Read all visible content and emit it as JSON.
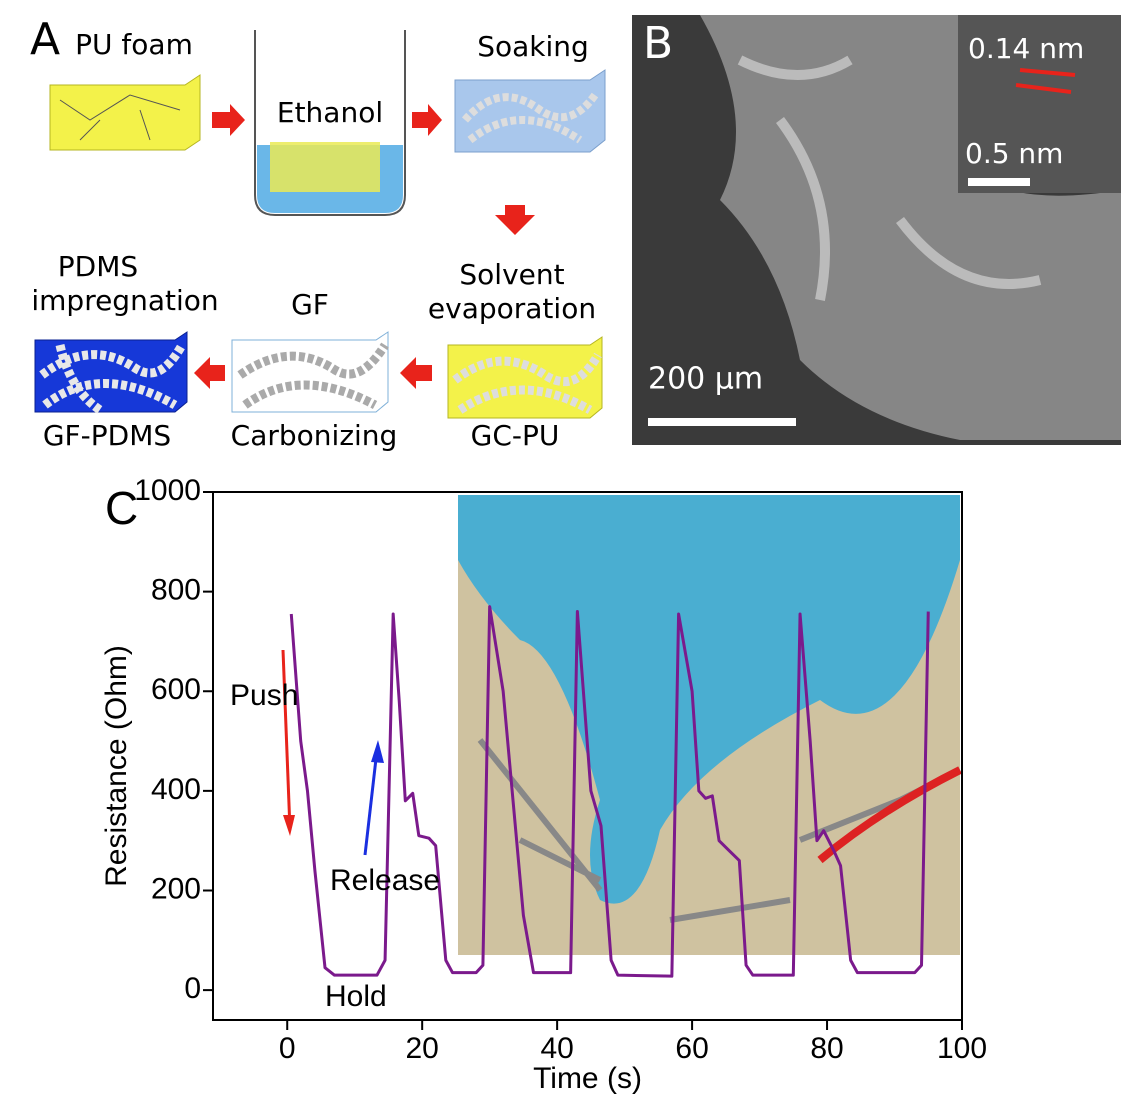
{
  "panel_a": {
    "label": "A",
    "pu_foam": "PU foam",
    "ethanol": "Ethanol",
    "soaking": "Soaking",
    "solvent_evaporation": [
      "Solvent",
      "evaporation"
    ],
    "pdms_impregnation": [
      "PDMS",
      "impregnation"
    ],
    "gf": "GF",
    "gf_pdms": "GF-PDMS",
    "carbonizing": "Carbonizing",
    "gc_pu": "GC-PU"
  },
  "panel_b": {
    "label": "B",
    "inset_spacing": "0.14 nm",
    "inset_scale": "0.5 nm",
    "scale": "200 μm"
  },
  "chart_data": {
    "type": "line",
    "label": "C",
    "xlabel": "Time (s)",
    "ylabel": "Resistance (Ohm)",
    "xlim": [
      -11,
      100
    ],
    "ylim": [
      -60,
      1000
    ],
    "xticks": [
      0,
      20,
      40,
      60,
      80,
      100
    ],
    "yticks": [
      0,
      200,
      400,
      600,
      800,
      1000
    ],
    "color": "#7b1a8c",
    "annotations": [
      "Push",
      "Release",
      "Hold"
    ],
    "x": [
      0.6,
      2,
      3,
      4.1,
      5.6,
      7,
      13.3,
      14.5,
      15.7,
      16.6,
      17.5,
      18.6,
      19.5,
      21,
      22,
      23.5,
      24.5,
      28,
      29,
      30,
      32,
      35,
      36.5,
      42,
      43,
      45,
      46.5,
      48,
      49,
      57,
      58,
      60,
      61,
      62,
      63,
      64,
      65.5,
      67,
      68,
      69,
      75,
      76,
      77.5,
      78.5,
      79.5,
      81,
      82,
      83.5,
      84.5,
      93,
      94,
      95
    ],
    "values": [
      755,
      500,
      400,
      240,
      45,
      30,
      30,
      60,
      755,
      580,
      380,
      395,
      310,
      305,
      290,
      60,
      35,
      35,
      50,
      770,
      600,
      150,
      35,
      35,
      760,
      400,
      330,
      60,
      30,
      28,
      755,
      600,
      400,
      385,
      390,
      300,
      280,
      260,
      50,
      30,
      30,
      755,
      500,
      300,
      320,
      280,
      250,
      60,
      35,
      35,
      50,
      760
    ]
  }
}
